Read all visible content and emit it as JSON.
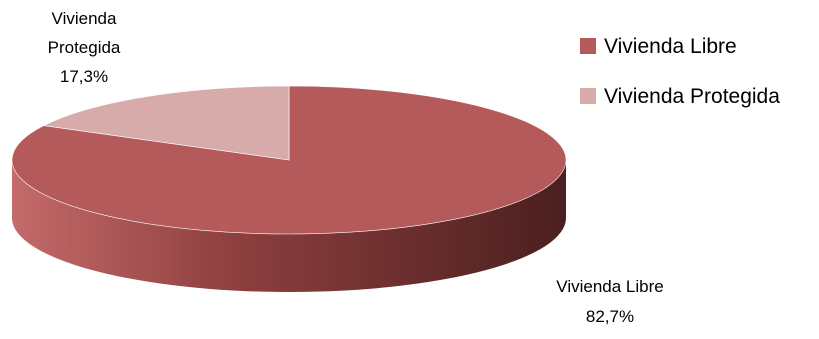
{
  "chart_data": {
    "type": "pie",
    "style": "3d",
    "categories": [
      "Vivienda Libre",
      "Vivienda Protegida"
    ],
    "values": [
      82.7,
      17.3
    ],
    "value_labels": [
      "82,7%",
      "17,3%"
    ],
    "colors": {
      "Vivienda Libre": "#b55a5a",
      "Vivienda Protegida": "#d8abab",
      "side_dark": "#4b1f1f",
      "side_mid": "#8e3f3f"
    },
    "legend": {
      "placement": "top-right",
      "items": [
        "Vivienda Libre",
        "Vivienda Protegida"
      ]
    },
    "data_labels": [
      {
        "category_lines": [
          "Vivienda",
          "Protegida"
        ],
        "value": "17,3%"
      },
      {
        "category_lines": [
          "Vivienda Libre"
        ],
        "value": "82,7%"
      }
    ]
  }
}
